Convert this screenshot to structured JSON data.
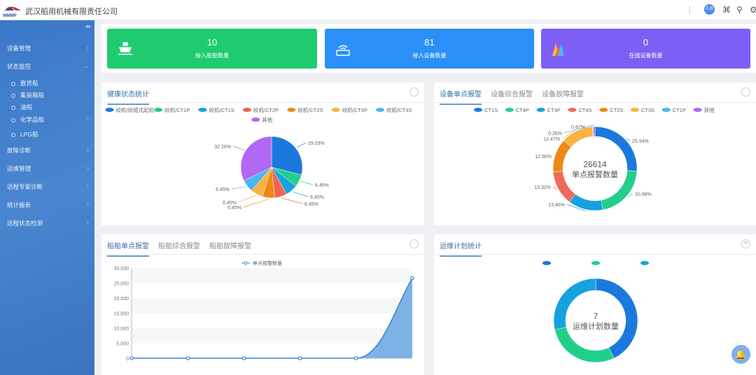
{
  "header": {
    "company": "武汉船用机械有限责任公司",
    "logo_text": "WMMP",
    "avatar": "人员"
  },
  "sidebar": {
    "items": [
      {
        "label": "设备管理",
        "arrow": "›"
      },
      {
        "label": "状态监控",
        "arrow": "⌄"
      },
      {
        "label": "散货船",
        "sub": true
      },
      {
        "label": "集装箱船",
        "sub": true
      },
      {
        "label": "油船",
        "sub": true
      },
      {
        "label": "化学品船",
        "sub": true,
        "arrow": "›"
      },
      {
        "label": "LPG船",
        "sub": true
      },
      {
        "label": "故障诊断",
        "arrow": "›"
      },
      {
        "label": "运维管理",
        "arrow": "›"
      },
      {
        "label": "远程专家诊断",
        "arrow": "›"
      },
      {
        "label": "统计报表",
        "arrow": "›"
      },
      {
        "label": "远程状态检测",
        "arrow": "›"
      }
    ]
  },
  "cards": [
    {
      "value": "10",
      "label": "接入船舶数量",
      "color": "#1ecb6e",
      "icon": "ship-icon"
    },
    {
      "value": "81",
      "label": "接入设备数量",
      "color": "#2a8ff7",
      "icon": "router-icon"
    },
    {
      "value": "0",
      "label": "在线设备数量",
      "color": "#7d5ff5",
      "icon": "waveform-icon"
    }
  ],
  "health": {
    "tabs": [
      "健康状态统计"
    ]
  },
  "device_alarm": {
    "tabs": [
      "设备单点报警",
      "设备综合报警",
      "设备故障报警"
    ]
  },
  "ship_alarm": {
    "tabs": [
      "船舶单点报警",
      "船舶综合报警",
      "船舶故障报警"
    ]
  },
  "maintenance": {
    "tabs": [
      "运维计划统计"
    ]
  },
  "chart_data": [
    {
      "type": "pie",
      "title": "健康状态统计",
      "legend": "top",
      "series": [
        {
          "name": "绞机/绞缆式起机",
          "value": 29.03,
          "label": "29.03%",
          "color": "#1b79de"
        },
        {
          "name": "绞机/CT1P",
          "value": 6.45,
          "label": "6.45%",
          "color": "#22cf8a"
        },
        {
          "name": "绞机/CT1S",
          "value": 6.45,
          "label": "6.45%",
          "color": "#15a2df"
        },
        {
          "name": "绞机/CT2P",
          "value": 6.45,
          "label": "6.45%",
          "color": "#f06450"
        },
        {
          "name": "绞机/CT2S",
          "value": 6.45,
          "label": "6.45%",
          "color": "#eb8a14"
        },
        {
          "name": "绞机/CT3P",
          "value": 6.45,
          "label": "6.45%",
          "color": "#f8b342"
        },
        {
          "name": "绞机/CT3S",
          "value": 6.45,
          "label": "6.45%",
          "color": "#4ab6f2"
        },
        {
          "name": "其他",
          "value": 32.26,
          "label": "32.26%",
          "color": "#b068f5"
        }
      ]
    },
    {
      "type": "pie",
      "subtype": "donut",
      "title": "设备单点报警",
      "center_value": "26614",
      "center_label": "单点报警数量",
      "legend": "top",
      "series": [
        {
          "name": "CT1S",
          "value": 25.94,
          "label": "25.94%",
          "color": "#1b79de"
        },
        {
          "name": "CT4P",
          "value": 20.98,
          "label": "20.98%",
          "color": "#22cf8a"
        },
        {
          "name": "CT3P",
          "value": 13.46,
          "label": "13.46%",
          "color": "#15a2df"
        },
        {
          "name": "CT4S",
          "value": 13.32,
          "label": "13.32%",
          "color": "#f06a5a"
        },
        {
          "name": "CT2S",
          "value": 12.9,
          "label": "12.90%",
          "color": "#eb8a14"
        },
        {
          "name": "CT3S",
          "value": 12.47,
          "label": "12.47%",
          "color": "#f8b342"
        },
        {
          "name": "CT1P",
          "value": 0.26,
          "label": "0.26%",
          "color": "#4ab6f2"
        },
        {
          "name": "其他",
          "value": 0.67,
          "label": "0.67%",
          "color": "#b068f5"
        }
      ]
    },
    {
      "type": "area",
      "title": "船舶单点报警",
      "legend": "top",
      "series": [
        {
          "name": "单点报警数量",
          "values": [
            0,
            0,
            0,
            0,
            0,
            26614
          ],
          "color": "#3d84c8",
          "fill": "#7eb2e6"
        }
      ],
      "ylim": [
        0,
        30000
      ],
      "yticks": [
        "0",
        "5,000",
        "10,000",
        "15,000",
        "20,000",
        "25,000",
        "30,000"
      ],
      "grid": true
    },
    {
      "type": "pie",
      "subtype": "donut",
      "title": "运维计划统计",
      "center_value": "7",
      "center_label": "运维计划数量",
      "legend": "top",
      "series": [
        {
          "name": "",
          "value": 3,
          "color": "#1b79de"
        },
        {
          "name": "",
          "value": 2,
          "color": "#22cf8a"
        },
        {
          "name": "",
          "value": 2,
          "color": "#15a2df"
        }
      ]
    }
  ]
}
